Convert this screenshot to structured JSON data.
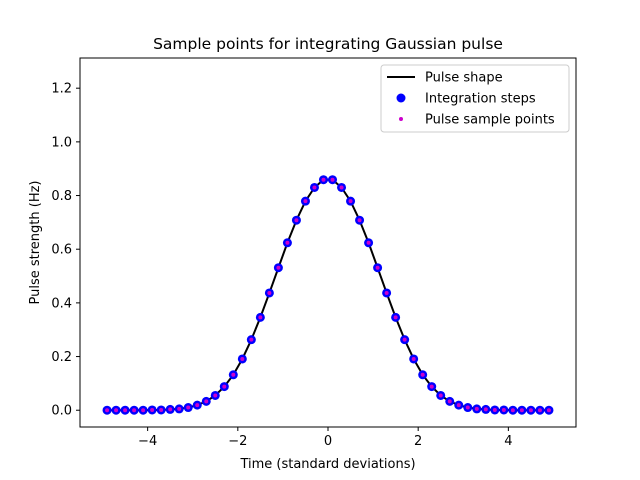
{
  "chart_data": {
    "type": "line",
    "title": "Sample points for integrating Gaussian pulse",
    "xlabel": "Time (standard deviations)",
    "ylabel": "Pulse strength (Hz)",
    "xlim": [
      -5.5,
      5.5
    ],
    "ylim": [
      -0.0625,
      1.3125
    ],
    "xticks": [
      -4,
      -2,
      0,
      2,
      4
    ],
    "xtick_labels": [
      "−4",
      "−2",
      "0",
      "2",
      "4"
    ],
    "yticks": [
      0.0,
      0.2,
      0.4,
      0.6,
      0.8,
      1.0,
      1.2
    ],
    "ytick_labels": [
      "0.0",
      "0.2",
      "0.4",
      "0.6",
      "0.8",
      "1.0",
      "1.2"
    ],
    "grid": false,
    "legend_position": "upper right",
    "series": [
      {
        "name": "Pulse shape",
        "kind": "line",
        "color": "#000000",
        "x": [
          -4.9,
          -4.7,
          -4.5,
          -4.3,
          -4.1,
          -3.9,
          -3.7,
          -3.5,
          -3.3,
          -3.1,
          -2.9,
          -2.7,
          -2.5,
          -2.3,
          -2.1,
          -1.9,
          -1.7,
          -1.5,
          -1.3,
          -1.1,
          -0.9,
          -0.7,
          -0.5,
          -0.3,
          -0.1,
          0.1,
          0.3,
          0.5,
          0.7,
          0.9,
          1.1,
          1.3,
          1.5,
          1.7,
          1.9,
          2.1,
          2.3,
          2.5,
          2.7,
          2.9,
          3.1,
          3.3,
          3.5,
          3.7,
          3.9,
          4.1,
          4.3,
          4.5,
          4.7,
          4.9
        ],
        "y": [
          0.0,
          0.0,
          0.0,
          0.0,
          0.0,
          0.001,
          0.001,
          0.003,
          0.005,
          0.01,
          0.019,
          0.033,
          0.055,
          0.088,
          0.132,
          0.191,
          0.263,
          0.346,
          0.437,
          0.531,
          0.624,
          0.708,
          0.779,
          0.83,
          0.859,
          0.859,
          0.83,
          0.779,
          0.708,
          0.624,
          0.531,
          0.437,
          0.346,
          0.263,
          0.191,
          0.132,
          0.088,
          0.055,
          0.033,
          0.019,
          0.01,
          0.005,
          0.003,
          0.001,
          0.001,
          0.0,
          0.0,
          0.0,
          0.0,
          0.0
        ]
      },
      {
        "name": "Integration steps",
        "kind": "markers",
        "color": "#0000ff",
        "x": [
          -4.9,
          -4.7,
          -4.5,
          -4.3,
          -4.1,
          -3.9,
          -3.7,
          -3.5,
          -3.3,
          -3.1,
          -2.9,
          -2.7,
          -2.5,
          -2.3,
          -2.1,
          -1.9,
          -1.7,
          -1.5,
          -1.3,
          -1.1,
          -0.9,
          -0.7,
          -0.5,
          -0.3,
          -0.1,
          0.1,
          0.3,
          0.5,
          0.7,
          0.9,
          1.1,
          1.3,
          1.5,
          1.7,
          1.9,
          2.1,
          2.3,
          2.5,
          2.7,
          2.9,
          3.1,
          3.3,
          3.5,
          3.7,
          3.9,
          4.1,
          4.3,
          4.5,
          4.7,
          4.9
        ],
        "y": [
          0.0,
          0.0,
          0.0,
          0.0,
          0.0,
          0.001,
          0.001,
          0.003,
          0.005,
          0.01,
          0.019,
          0.033,
          0.055,
          0.088,
          0.132,
          0.191,
          0.263,
          0.346,
          0.437,
          0.531,
          0.624,
          0.708,
          0.779,
          0.83,
          0.859,
          0.859,
          0.83,
          0.779,
          0.708,
          0.624,
          0.531,
          0.437,
          0.346,
          0.263,
          0.191,
          0.132,
          0.088,
          0.055,
          0.033,
          0.019,
          0.01,
          0.005,
          0.003,
          0.001,
          0.001,
          0.0,
          0.0,
          0.0,
          0.0,
          0.0
        ]
      },
      {
        "name": "Pulse sample points",
        "kind": "small-markers",
        "color": "#cc00cc",
        "x": [
          -4.9,
          -4.7,
          -4.5,
          -4.3,
          -4.1,
          -3.9,
          -3.7,
          -3.5,
          -3.3,
          -3.1,
          -2.9,
          -2.7,
          -2.5,
          -2.3,
          -2.1,
          -1.9,
          -1.7,
          -1.5,
          -1.3,
          -1.1,
          -0.9,
          -0.7,
          -0.5,
          -0.3,
          -0.1,
          0.1,
          0.3,
          0.5,
          0.7,
          0.9,
          1.1,
          1.3,
          1.5,
          1.7,
          1.9,
          2.1,
          2.3,
          2.5,
          2.7,
          2.9,
          3.1,
          3.3,
          3.5,
          3.7,
          3.9,
          4.1,
          4.3,
          4.5,
          4.7,
          4.9
        ],
        "y": [
          0.0,
          0.0,
          0.0,
          0.0,
          0.0,
          0.001,
          0.001,
          0.003,
          0.005,
          0.01,
          0.019,
          0.033,
          0.055,
          0.088,
          0.132,
          0.191,
          0.263,
          0.346,
          0.437,
          0.531,
          0.624,
          0.708,
          0.779,
          0.83,
          0.859,
          0.859,
          0.83,
          0.779,
          0.708,
          0.624,
          0.531,
          0.437,
          0.346,
          0.263,
          0.191,
          0.132,
          0.088,
          0.055,
          0.033,
          0.019,
          0.01,
          0.005,
          0.003,
          0.001,
          0.001,
          0.0,
          0.0,
          0.0,
          0.0,
          0.0
        ]
      }
    ]
  }
}
